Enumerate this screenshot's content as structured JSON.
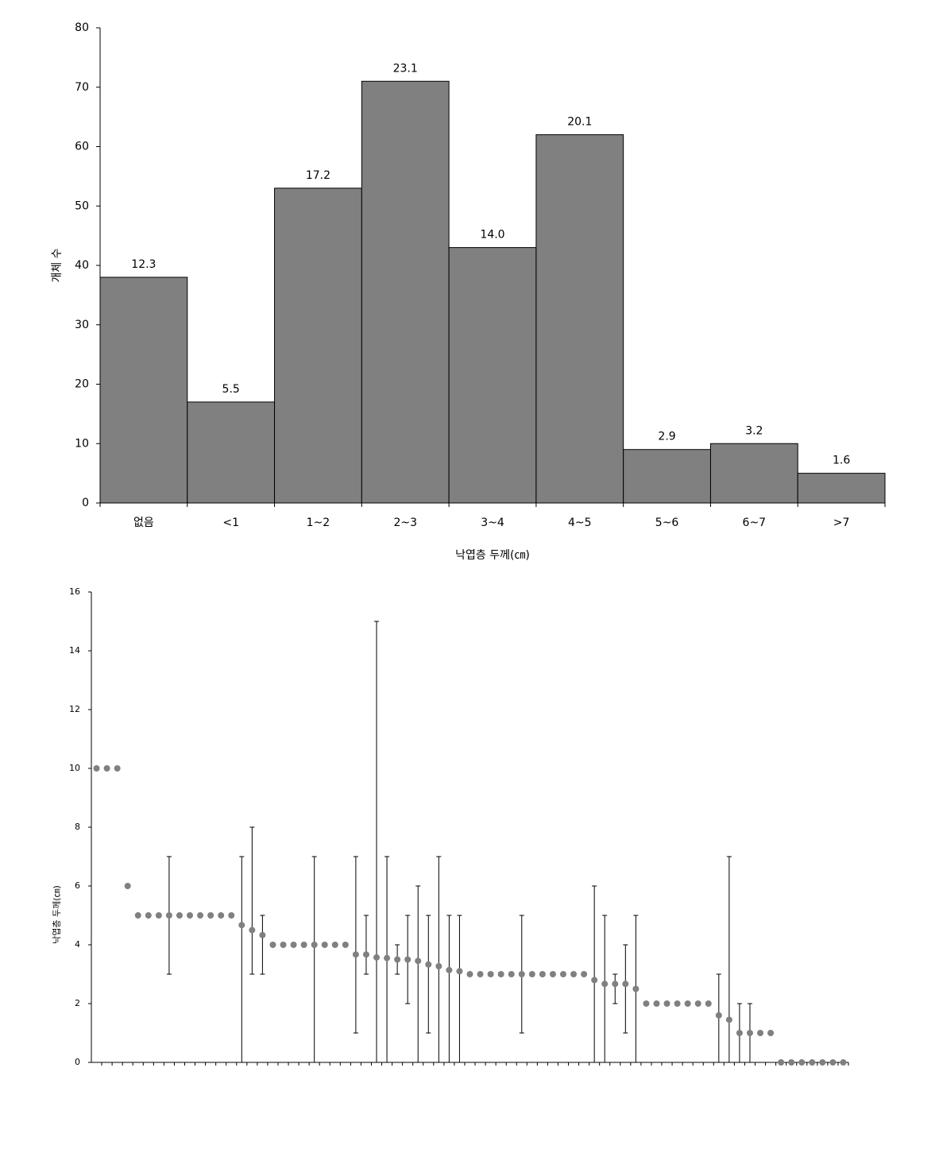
{
  "chart_data": [
    {
      "type": "bar",
      "categories": [
        "없음",
        "<1",
        "1~2",
        "2~3",
        "3~4",
        "4~5",
        "5~6",
        "6~7",
        ">7"
      ],
      "values": [
        38,
        17,
        53,
        71,
        43,
        62,
        9,
        10,
        5
      ],
      "data_labels": [
        "12.3",
        "5.5",
        "17.2",
        "23.1",
        "14.0",
        "20.1",
        "2.9",
        "3.2",
        "1.6"
      ],
      "color": "#808080",
      "xlabel": "낙엽층 두께(㎝)",
      "ylabel": "개체 수",
      "ylim": [
        0,
        80
      ],
      "yticks": [
        0,
        10,
        20,
        30,
        40,
        50,
        60,
        70,
        80
      ]
    },
    {
      "type": "scatter",
      "categories": [
        null,
        null,
        null,
        null,
        null,
        null,
        null,
        null,
        null,
        null,
        null,
        null,
        null,
        null,
        null,
        null,
        null,
        null,
        null,
        null,
        null,
        null,
        null,
        null,
        null,
        null,
        null,
        null,
        null,
        null,
        null,
        null,
        null,
        null,
        null,
        null,
        null,
        null,
        null,
        null,
        null,
        null,
        null,
        null,
        null,
        null,
        null,
        null,
        null,
        null,
        null,
        null,
        null,
        null,
        null,
        null,
        null,
        null,
        null,
        null,
        null,
        null,
        null,
        null,
        null,
        null,
        null,
        null,
        null,
        null,
        null,
        null,
        null
      ],
      "values": [
        10,
        10,
        10,
        6,
        5,
        5,
        5,
        5,
        5,
        5,
        5,
        5,
        5,
        5,
        4.67,
        4.5,
        4.33,
        4,
        4,
        4,
        4,
        4,
        4,
        4,
        4,
        3.67,
        3.67,
        3.57,
        3.55,
        3.5,
        3.5,
        3.45,
        3.33,
        3.27,
        3.14,
        3.1,
        3,
        3,
        3,
        3,
        3,
        3,
        3,
        3,
        3,
        3,
        3,
        3,
        2.8,
        2.67,
        2.67,
        2.67,
        2.5,
        2,
        2,
        2,
        2,
        2,
        2,
        2,
        1.6,
        1.45,
        1,
        1,
        1,
        1,
        0,
        0,
        0,
        0,
        0,
        0,
        0
      ],
      "low": [
        null,
        null,
        null,
        null,
        null,
        null,
        null,
        3,
        null,
        null,
        null,
        null,
        null,
        null,
        0,
        3,
        3,
        null,
        null,
        null,
        null,
        0,
        null,
        null,
        null,
        1,
        3,
        0,
        0,
        3,
        2,
        0,
        1,
        0,
        0,
        0,
        null,
        null,
        null,
        null,
        null,
        1,
        null,
        null,
        null,
        null,
        null,
        null,
        0,
        0,
        2,
        1,
        0,
        null,
        null,
        null,
        null,
        null,
        null,
        null,
        0,
        0,
        0,
        0,
        null,
        null,
        null,
        null,
        null,
        null,
        null,
        null,
        null
      ],
      "high": [
        null,
        null,
        null,
        null,
        null,
        null,
        null,
        7,
        null,
        null,
        null,
        null,
        null,
        null,
        7,
        8,
        5,
        null,
        null,
        null,
        null,
        7,
        null,
        null,
        null,
        7,
        5,
        15,
        7,
        4,
        5,
        6,
        5,
        7,
        5,
        5,
        null,
        null,
        null,
        null,
        null,
        5,
        null,
        null,
        null,
        null,
        null,
        null,
        6,
        5,
        3,
        4,
        5,
        null,
        null,
        null,
        null,
        null,
        null,
        null,
        3,
        7,
        2,
        2,
        null,
        null,
        null,
        null,
        null,
        null,
        null,
        null,
        null
      ],
      "color": "#808080",
      "ylabel": "낙엽층 두께(㎝)",
      "ylim": [
        0,
        16
      ],
      "yticks": [
        0,
        2,
        4,
        6,
        8,
        10,
        12,
        14,
        16
      ]
    }
  ]
}
